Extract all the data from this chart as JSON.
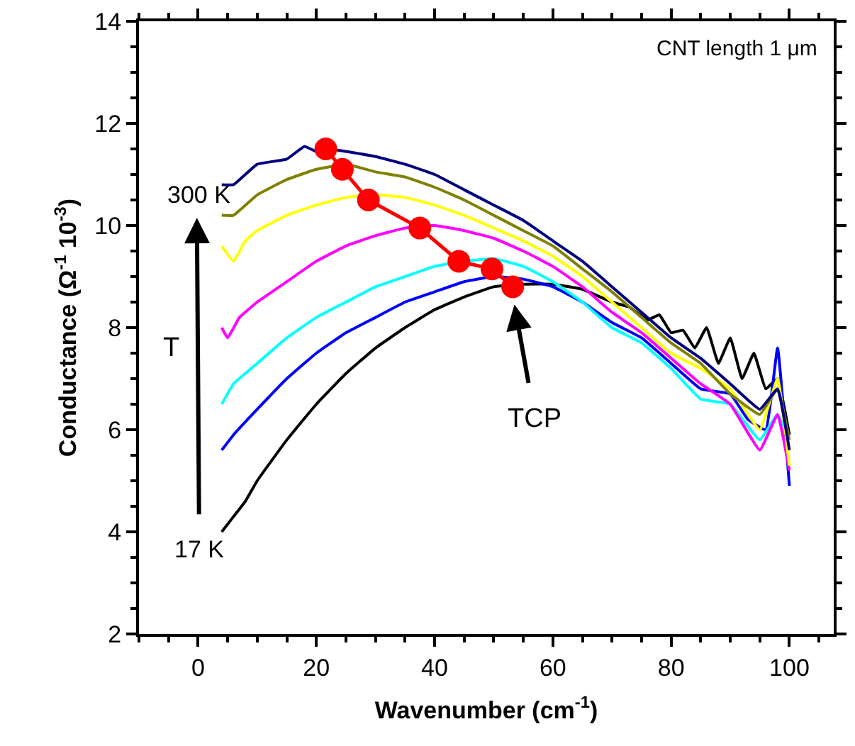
{
  "chart_data": {
    "type": "line",
    "xlabel": "Wavenumber (cm$^{-1}$)",
    "ylabel": "Conductance (Ω$^{-1}$ 10$^{-3}$)",
    "xlim": [
      -10,
      107.5
    ],
    "xticks": [
      0,
      20,
      40,
      60,
      80,
      100
    ],
    "ylim": [
      2,
      14
    ],
    "yticks": [
      2,
      4,
      6,
      8,
      10,
      12,
      14
    ],
    "line_style": "solid",
    "series": [
      {
        "color": "#000000",
        "x": [
          4,
          6,
          8,
          10,
          15,
          20,
          25,
          30,
          35,
          40,
          45,
          50,
          55,
          60,
          65,
          70,
          73,
          76,
          78,
          80,
          82,
          84,
          86,
          88,
          90,
          92,
          94,
          96,
          98,
          100
        ],
        "values": [
          4.0,
          4.3,
          4.6,
          5.0,
          5.8,
          6.5,
          7.1,
          7.6,
          8.0,
          8.35,
          8.6,
          8.8,
          8.85,
          8.85,
          8.75,
          8.5,
          8.4,
          8.15,
          8.25,
          7.9,
          7.95,
          7.6,
          8.0,
          7.3,
          7.8,
          7.0,
          7.5,
          6.8,
          7.0,
          5.9
        ]
      },
      {
        "color": "#0000ff",
        "x": [
          4,
          6,
          10,
          15,
          20,
          25,
          30,
          35,
          40,
          45,
          50,
          55,
          60,
          65,
          70,
          75,
          80,
          85,
          90,
          93,
          96,
          98,
          100
        ],
        "values": [
          5.6,
          5.9,
          6.4,
          7.0,
          7.5,
          7.9,
          8.2,
          8.5,
          8.7,
          8.9,
          9.0,
          8.95,
          8.8,
          8.5,
          8.1,
          7.8,
          7.3,
          6.8,
          6.7,
          6.2,
          6.0,
          7.6,
          4.9
        ]
      },
      {
        "color": "#00ffff",
        "x": [
          4,
          6,
          10,
          15,
          20,
          25,
          30,
          35,
          40,
          45,
          50,
          55,
          60,
          65,
          70,
          75,
          80,
          85,
          90,
          95,
          98,
          100
        ],
        "values": [
          6.5,
          6.9,
          7.3,
          7.8,
          8.2,
          8.5,
          8.8,
          9.0,
          9.2,
          9.3,
          9.35,
          9.2,
          8.9,
          8.5,
          8.0,
          7.7,
          7.2,
          6.6,
          6.5,
          5.8,
          6.3,
          5.8
        ]
      },
      {
        "color": "#ff00ff",
        "x": [
          4,
          5,
          7,
          10,
          15,
          20,
          25,
          30,
          35,
          40,
          45,
          50,
          55,
          60,
          65,
          70,
          75,
          80,
          85,
          90,
          95,
          98,
          100
        ],
        "values": [
          8.0,
          7.8,
          8.2,
          8.5,
          8.9,
          9.3,
          9.6,
          9.8,
          9.95,
          10.0,
          9.9,
          9.75,
          9.5,
          9.2,
          8.8,
          8.3,
          7.9,
          7.4,
          6.9,
          6.5,
          5.6,
          6.3,
          5.2
        ]
      },
      {
        "color": "#ffff00",
        "x": [
          4,
          6,
          8,
          10,
          15,
          20,
          25,
          30,
          35,
          40,
          45,
          50,
          55,
          60,
          65,
          70,
          75,
          80,
          85,
          90,
          95,
          98,
          100
        ],
        "values": [
          9.6,
          9.3,
          9.7,
          9.9,
          10.2,
          10.4,
          10.55,
          10.6,
          10.55,
          10.4,
          10.2,
          9.95,
          9.7,
          9.4,
          9.0,
          8.5,
          8.0,
          7.5,
          7.2,
          6.8,
          6.0,
          7.0,
          5.3
        ]
      },
      {
        "color": "#808000",
        "x": [
          4,
          6,
          10,
          15,
          20,
          25,
          30,
          35,
          40,
          45,
          50,
          55,
          60,
          65,
          70,
          75,
          80,
          85,
          90,
          95,
          98,
          100
        ],
        "values": [
          10.2,
          10.2,
          10.6,
          10.9,
          11.1,
          11.2,
          11.05,
          10.95,
          10.75,
          10.5,
          10.2,
          9.9,
          9.6,
          9.15,
          8.7,
          8.2,
          7.7,
          7.3,
          6.7,
          6.3,
          6.8,
          5.8
        ]
      },
      {
        "color": "#000080",
        "x": [
          4,
          6,
          10,
          15,
          18,
          20,
          22,
          25,
          30,
          35,
          40,
          45,
          50,
          55,
          60,
          65,
          70,
          75,
          80,
          85,
          90,
          95,
          98,
          100
        ],
        "values": [
          10.8,
          10.8,
          11.2,
          11.3,
          11.55,
          11.45,
          11.5,
          11.45,
          11.35,
          11.2,
          11.0,
          10.7,
          10.4,
          10.1,
          9.7,
          9.3,
          8.8,
          8.3,
          7.8,
          7.4,
          6.9,
          6.4,
          6.8,
          5.6
        ]
      },
      {
        "color": "#ff0000",
        "marker": "circle",
        "x": [
          21.6,
          24.4,
          28.8,
          37.5,
          44.1,
          49.7,
          53.2
        ],
        "values": [
          11.5,
          11.1,
          10.5,
          9.95,
          9.3,
          9.15,
          8.8
        ]
      }
    ],
    "annotations": [
      "300 K",
      "17 K",
      "T",
      "TCP",
      "CNT length 1 μm"
    ]
  }
}
